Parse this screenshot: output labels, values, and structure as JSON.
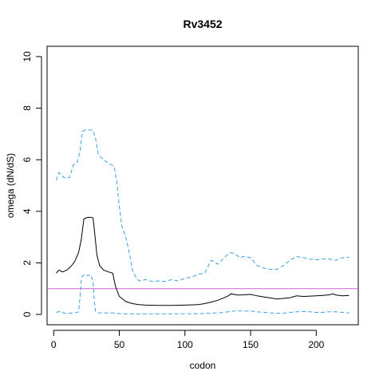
{
  "chart_data": {
    "type": "line",
    "title": "Rv3452",
    "xlabel": "codon",
    "ylabel": "omega (dN/dS)",
    "xlim": [
      -5,
      232
    ],
    "ylim": [
      -0.4,
      10.4
    ],
    "xticks": [
      0,
      50,
      100,
      150,
      200
    ],
    "yticks": [
      0,
      2,
      4,
      6,
      8,
      10
    ],
    "grid": false,
    "reference_line": {
      "y": 1,
      "color": "#cc66cc"
    },
    "series": [
      {
        "role": "estimate",
        "color": "#000000",
        "dash": "solid",
        "x": [
          2,
          4,
          7,
          10,
          13,
          16,
          19,
          21,
          23,
          25,
          27,
          30,
          31,
          33,
          35,
          38,
          42,
          45,
          47,
          50,
          55,
          60,
          65,
          70,
          80,
          90,
          100,
          110,
          115,
          120,
          125,
          130,
          133,
          135,
          140,
          145,
          150,
          155,
          160,
          165,
          170,
          175,
          180,
          185,
          190,
          195,
          200,
          205,
          210,
          213,
          215,
          220,
          225
        ],
        "y": [
          1.6,
          1.72,
          1.65,
          1.72,
          1.85,
          2.05,
          2.4,
          2.9,
          3.7,
          3.75,
          3.77,
          3.75,
          3.3,
          2.3,
          1.9,
          1.72,
          1.65,
          1.6,
          1.1,
          0.7,
          0.5,
          0.42,
          0.38,
          0.36,
          0.35,
          0.35,
          0.36,
          0.38,
          0.42,
          0.48,
          0.55,
          0.65,
          0.72,
          0.8,
          0.75,
          0.76,
          0.78,
          0.72,
          0.68,
          0.64,
          0.6,
          0.62,
          0.65,
          0.72,
          0.7,
          0.71,
          0.72,
          0.74,
          0.76,
          0.8,
          0.75,
          0.72,
          0.74
        ]
      },
      {
        "role": "upper bound",
        "color": "#3aa0e6",
        "dash": "dashed",
        "x": [
          2,
          4,
          6,
          8,
          12,
          15,
          18,
          20,
          22,
          24,
          27,
          30,
          32,
          34,
          38,
          42,
          46,
          48,
          50,
          52,
          55,
          58,
          60,
          62,
          65,
          70,
          75,
          80,
          85,
          90,
          95,
          100,
          105,
          110,
          115,
          118,
          120,
          122,
          125,
          128,
          132,
          135,
          138,
          142,
          145,
          150,
          155,
          160,
          165,
          170,
          175,
          180,
          185,
          190,
          195,
          200,
          205,
          210,
          215,
          220,
          225
        ],
        "y": [
          5.2,
          5.5,
          5.4,
          5.3,
          5.3,
          5.8,
          5.9,
          6.3,
          7.1,
          7.15,
          7.15,
          7.15,
          6.8,
          6.2,
          6.0,
          5.85,
          5.75,
          5.2,
          4.2,
          3.4,
          3.0,
          2.3,
          1.7,
          1.5,
          1.3,
          1.35,
          1.28,
          1.3,
          1.28,
          1.35,
          1.3,
          1.4,
          1.45,
          1.55,
          1.6,
          1.9,
          2.1,
          2.05,
          1.95,
          2.1,
          2.3,
          2.4,
          2.35,
          2.2,
          2.25,
          2.2,
          1.9,
          1.8,
          1.75,
          1.75,
          1.9,
          2.1,
          2.25,
          2.2,
          2.15,
          2.12,
          2.15,
          2.15,
          2.1,
          2.2,
          2.22
        ]
      },
      {
        "role": "lower bound",
        "color": "#3aa0e6",
        "dash": "dashed",
        "x": [
          2,
          5,
          8,
          12,
          16,
          19,
          20,
          21,
          22,
          24,
          26,
          28,
          30,
          31,
          32,
          34,
          40,
          45,
          50,
          55,
          60,
          70,
          80,
          90,
          100,
          110,
          115,
          120,
          125,
          130,
          135,
          140,
          145,
          150,
          155,
          160,
          165,
          170,
          175,
          180,
          185,
          190,
          195,
          200,
          205,
          210,
          215,
          220,
          225
        ],
        "y": [
          0.08,
          0.12,
          0.05,
          0.05,
          0.06,
          0.1,
          0.6,
          1.3,
          1.5,
          1.55,
          1.5,
          1.55,
          1.3,
          0.5,
          0.1,
          0.06,
          0.06,
          0.06,
          0.03,
          0.02,
          0.02,
          0.02,
          0.02,
          0.02,
          0.03,
          0.03,
          0.04,
          0.05,
          0.06,
          0.08,
          0.12,
          0.14,
          0.13,
          0.14,
          0.1,
          0.08,
          0.06,
          0.05,
          0.05,
          0.08,
          0.1,
          0.12,
          0.1,
          0.08,
          0.08,
          0.1,
          0.1,
          0.08,
          0.06
        ]
      }
    ]
  }
}
